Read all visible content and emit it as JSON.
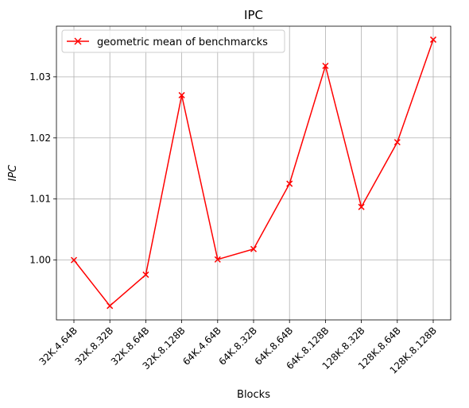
{
  "chart_data": {
    "type": "line",
    "title": "IPC",
    "xlabel": "Blocks",
    "ylabel": "IPC",
    "categories": [
      "32K.4.64B",
      "32K.8.32B",
      "32K.8.64B",
      "32K.8.128B",
      "64K.4.64B",
      "64K.8.32B",
      "64K.8.64B",
      "64K.8.128B",
      "128K.8.32B",
      "128K.8.64B",
      "128K.8.128B"
    ],
    "series": [
      {
        "name": "geometric mean of benchmarcks",
        "color": "#ff0000",
        "marker": "x",
        "values": [
          1.0,
          0.9925,
          0.9976,
          1.027,
          1.0001,
          1.0018,
          1.0125,
          1.0318,
          1.0087,
          1.0193,
          1.0361
        ]
      }
    ],
    "ylim": [
      0.9902,
      1.0383
    ],
    "yticks": [
      1.0,
      1.01,
      1.02,
      1.03
    ],
    "ytick_labels": [
      "1.00",
      "1.01",
      "1.02",
      "1.03"
    ],
    "grid": true,
    "legend_position": "top-left"
  }
}
